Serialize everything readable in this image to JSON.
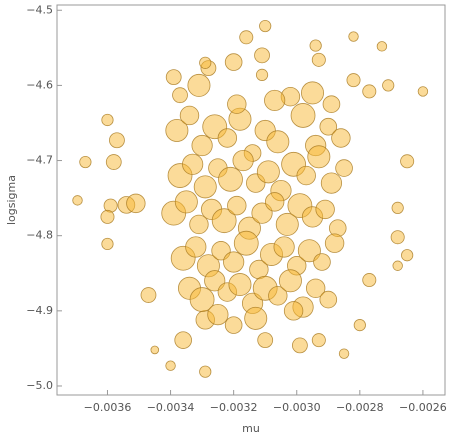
{
  "chart_data": {
    "type": "bubble",
    "x_label": "mu",
    "y_label": "logsigma",
    "color": "#f7b733",
    "edge_color": "#a7791f",
    "xlim": [
      -0.00376,
      -0.00253
    ],
    "ylim": [
      -5.012,
      -4.493
    ],
    "xticks": [
      {
        "value": -0.0036,
        "label": "−0.0036"
      },
      {
        "value": -0.0034,
        "label": "−0.0034"
      },
      {
        "value": -0.0032,
        "label": "−0.0032"
      },
      {
        "value": -0.003,
        "label": "−0.0030"
      },
      {
        "value": -0.0028,
        "label": "−0.0028"
      },
      {
        "value": -0.0026,
        "label": "−0.0026"
      }
    ],
    "yticks": [
      {
        "value": -5.0,
        "label": "−5.0"
      },
      {
        "value": -4.9,
        "label": "−4.9"
      },
      {
        "value": -4.8,
        "label": "−4.8"
      },
      {
        "value": -4.7,
        "label": "−4.7"
      },
      {
        "value": -4.6,
        "label": "−4.6"
      },
      {
        "value": -4.5,
        "label": "−4.5"
      }
    ],
    "x": [
      -0.003695,
      -0.00367,
      -0.0036,
      -0.00357,
      -0.00358,
      -0.00359,
      -0.0036,
      -0.0036,
      -0.00354,
      -0.00351,
      -0.00347,
      -0.00345,
      -0.0034,
      -0.00329,
      -0.00339,
      -0.00337,
      -0.00328,
      -0.00329,
      -0.0032,
      -0.00316,
      -0.00311,
      -0.0031,
      -0.00311,
      -0.00294,
      -0.00293,
      -0.00282,
      -0.00273,
      -0.00282,
      -0.00271,
      -0.00277,
      -0.0026,
      -0.00265,
      -0.00268,
      -0.00268,
      -0.00265,
      -0.00268,
      -0.00277,
      -0.0028,
      -0.00285,
      -0.00293,
      -0.00299,
      -0.00336,
      -0.00329,
      -0.0032,
      -0.0031,
      -0.00338,
      -0.00334,
      -0.0033,
      -0.00326,
      -0.00322,
      -0.00318,
      -0.00314,
      -0.0031,
      -0.00306,
      -0.00302,
      -0.00298,
      -0.00294,
      -0.0029,
      -0.00286,
      -0.00337,
      -0.00333,
      -0.00329,
      -0.00325,
      -0.00321,
      -0.00317,
      -0.00313,
      -0.00309,
      -0.00305,
      -0.00301,
      -0.00297,
      -0.00293,
      -0.00289,
      -0.00285,
      -0.00339,
      -0.00335,
      -0.00331,
      -0.00327,
      -0.00323,
      -0.00319,
      -0.00315,
      -0.00311,
      -0.00307,
      -0.00303,
      -0.00299,
      -0.00295,
      -0.00291,
      -0.00287,
      -0.00336,
      -0.00332,
      -0.00328,
      -0.00324,
      -0.0032,
      -0.00316,
      -0.00312,
      -0.00308,
      -0.00304,
      -0.003,
      -0.00296,
      -0.00292,
      -0.00288,
      -0.00334,
      -0.0033,
      -0.00326,
      -0.00322,
      -0.00318,
      -0.00314,
      -0.0031,
      -0.00306,
      -0.00302,
      -0.00298,
      -0.00294,
      -0.0029,
      -0.00331,
      -0.00325,
      -0.00319,
      -0.00313,
      -0.00307,
      -0.00301,
      -0.00295,
      -0.00289
    ],
    "y": [
      -4.753,
      -4.702,
      -4.646,
      -4.673,
      -4.702,
      -4.76,
      -4.775,
      -4.811,
      -4.759,
      -4.757,
      -4.879,
      -4.952,
      -4.973,
      -4.981,
      -4.589,
      -4.613,
      -4.577,
      -4.57,
      -4.569,
      -4.536,
      -4.56,
      -4.521,
      -4.586,
      -4.547,
      -4.566,
      -4.535,
      -4.548,
      -4.593,
      -4.6,
      -4.608,
      -4.608,
      -4.701,
      -4.763,
      -4.802,
      -4.826,
      -4.84,
      -4.859,
      -4.919,
      -4.957,
      -4.939,
      -4.946,
      -4.939,
      -4.912,
      -4.919,
      -4.939,
      -4.66,
      -4.64,
      -4.68,
      -4.655,
      -4.67,
      -4.645,
      -4.69,
      -4.66,
      -4.675,
      -4.615,
      -4.64,
      -4.68,
      -4.655,
      -4.67,
      -4.72,
      -4.705,
      -4.735,
      -4.71,
      -4.725,
      -4.7,
      -4.73,
      -4.715,
      -4.74,
      -4.705,
      -4.72,
      -4.695,
      -4.73,
      -4.71,
      -4.77,
      -4.755,
      -4.785,
      -4.765,
      -4.78,
      -4.76,
      -4.79,
      -4.77,
      -4.755,
      -4.785,
      -4.76,
      -4.775,
      -4.765,
      -4.79,
      -4.83,
      -4.815,
      -4.84,
      -4.82,
      -4.835,
      -4.81,
      -4.845,
      -4.825,
      -4.815,
      -4.84,
      -4.82,
      -4.835,
      -4.81,
      -4.87,
      -4.885,
      -4.86,
      -4.875,
      -4.865,
      -4.89,
      -4.87,
      -4.88,
      -4.86,
      -4.895,
      -4.87,
      -4.885,
      -4.6,
      -4.905,
      -4.625,
      -4.91,
      -4.62,
      -4.9,
      -4.61,
      -4.625
    ],
    "sizes": [
      0.2,
      0.3,
      0.3,
      0.5,
      0.5,
      0.4,
      0.4,
      0.3,
      0.6,
      0.7,
      0.5,
      0.1,
      0.2,
      0.3,
      0.5,
      0.5,
      0.5,
      0.3,
      0.6,
      0.4,
      0.5,
      0.3,
      0.3,
      0.3,
      0.4,
      0.2,
      0.2,
      0.4,
      0.3,
      0.4,
      0.2,
      0.4,
      0.3,
      0.4,
      0.3,
      0.2,
      0.4,
      0.3,
      0.2,
      0.4,
      0.5,
      0.6,
      0.7,
      0.6,
      0.5,
      0.9,
      0.7,
      0.8,
      1.0,
      0.7,
      0.9,
      0.6,
      0.8,
      0.9,
      0.7,
      1.0,
      0.8,
      0.6,
      0.7,
      1.0,
      0.8,
      0.9,
      0.7,
      1.0,
      0.8,
      0.7,
      0.9,
      0.8,
      1.0,
      0.7,
      0.9,
      0.8,
      0.6,
      1.0,
      0.9,
      0.7,
      0.8,
      1.0,
      0.7,
      0.9,
      0.8,
      0.7,
      0.9,
      1.0,
      0.8,
      0.7,
      0.6,
      1.0,
      0.8,
      0.9,
      0.7,
      0.8,
      1.0,
      0.7,
      0.9,
      0.8,
      0.7,
      0.9,
      0.6,
      0.7,
      0.9,
      1.0,
      0.8,
      0.7,
      0.9,
      0.8,
      1.0,
      0.7,
      0.9,
      0.8,
      0.7,
      0.6,
      0.9,
      0.8,
      0.7,
      0.9,
      0.8,
      0.7,
      0.9,
      0.6
    ]
  }
}
